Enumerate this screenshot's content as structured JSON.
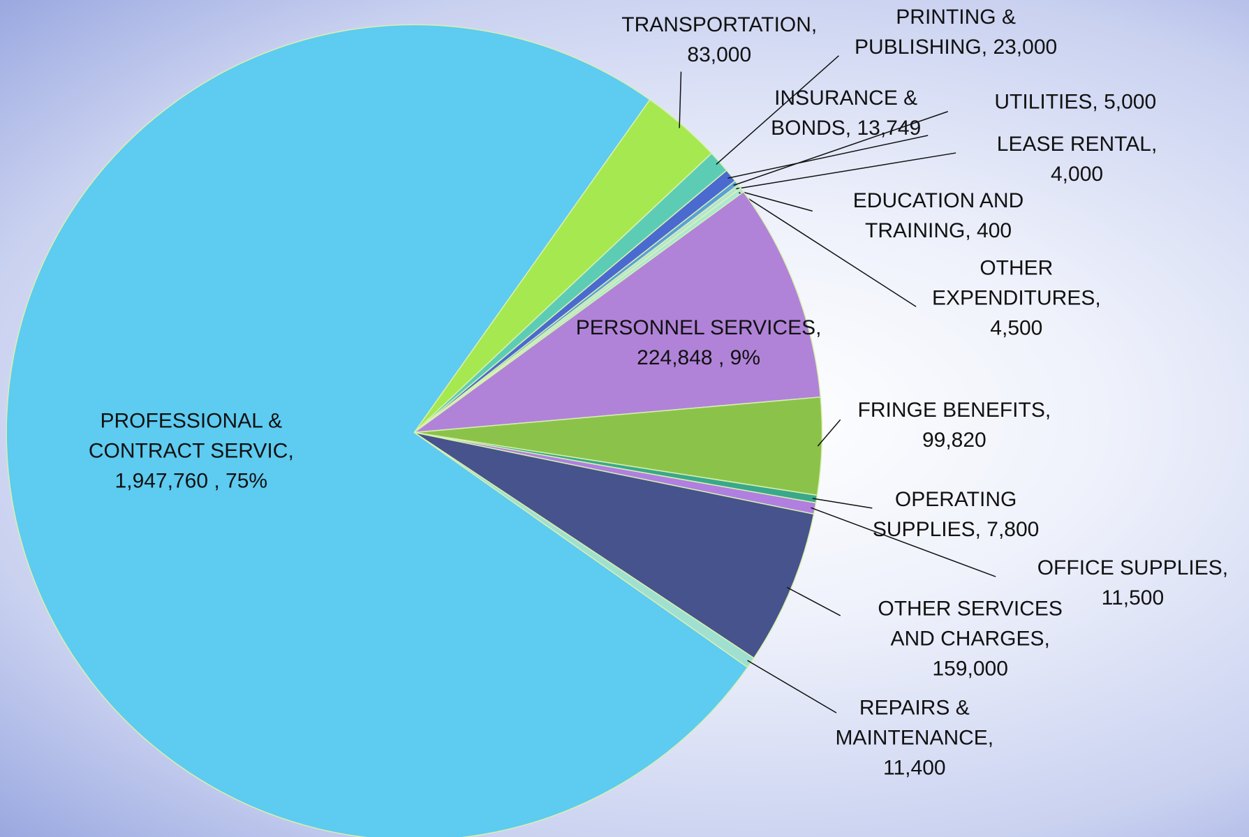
{
  "chart_data": {
    "type": "pie",
    "categories": [
      "TRANSPORTATION",
      "PRINTING & PUBLISHING",
      "INSURANCE & BONDS",
      "UTILITIES",
      "LEASE RENTAL",
      "EDUCATION AND TRAINING",
      "OTHER EXPENDITURES",
      "PERSONNEL SERVICES",
      "FRINGE BENEFITS",
      "OPERATING SUPPLIES",
      "OFFICE SUPPLIES",
      "OTHER SERVICES AND CHARGES",
      "REPAIRS & MAINTENANCE",
      "PROFESSIONAL & CONTRACT SERVIC"
    ],
    "values": [
      83000,
      23000,
      13749,
      5000,
      4000,
      400,
      4500,
      224848,
      99820,
      7800,
      11500,
      159000,
      11400,
      1947760
    ],
    "value_labels": [
      "83,000",
      "23,000",
      "13,749",
      "5,000",
      "4,000",
      "400",
      "4,500",
      "224,848",
      "99,820",
      "7,800",
      "11,500",
      "159,000",
      "11,400",
      "1,947,760"
    ],
    "percent_labels": [
      null,
      null,
      null,
      null,
      null,
      null,
      null,
      "9%",
      null,
      null,
      null,
      null,
      null,
      "75%"
    ],
    "colors": [
      "#a6e84f",
      "#5ccdb4",
      "#4a6ad0",
      "#5aa0d8",
      "#b4e4d4",
      "#cdf2cd",
      "#a8e8d8",
      "#b083d8",
      "#8bc34a",
      "#3aa88a",
      "#b07fe0",
      "#46538c",
      "#a0e0d0",
      "#5ecbf0"
    ]
  }
}
